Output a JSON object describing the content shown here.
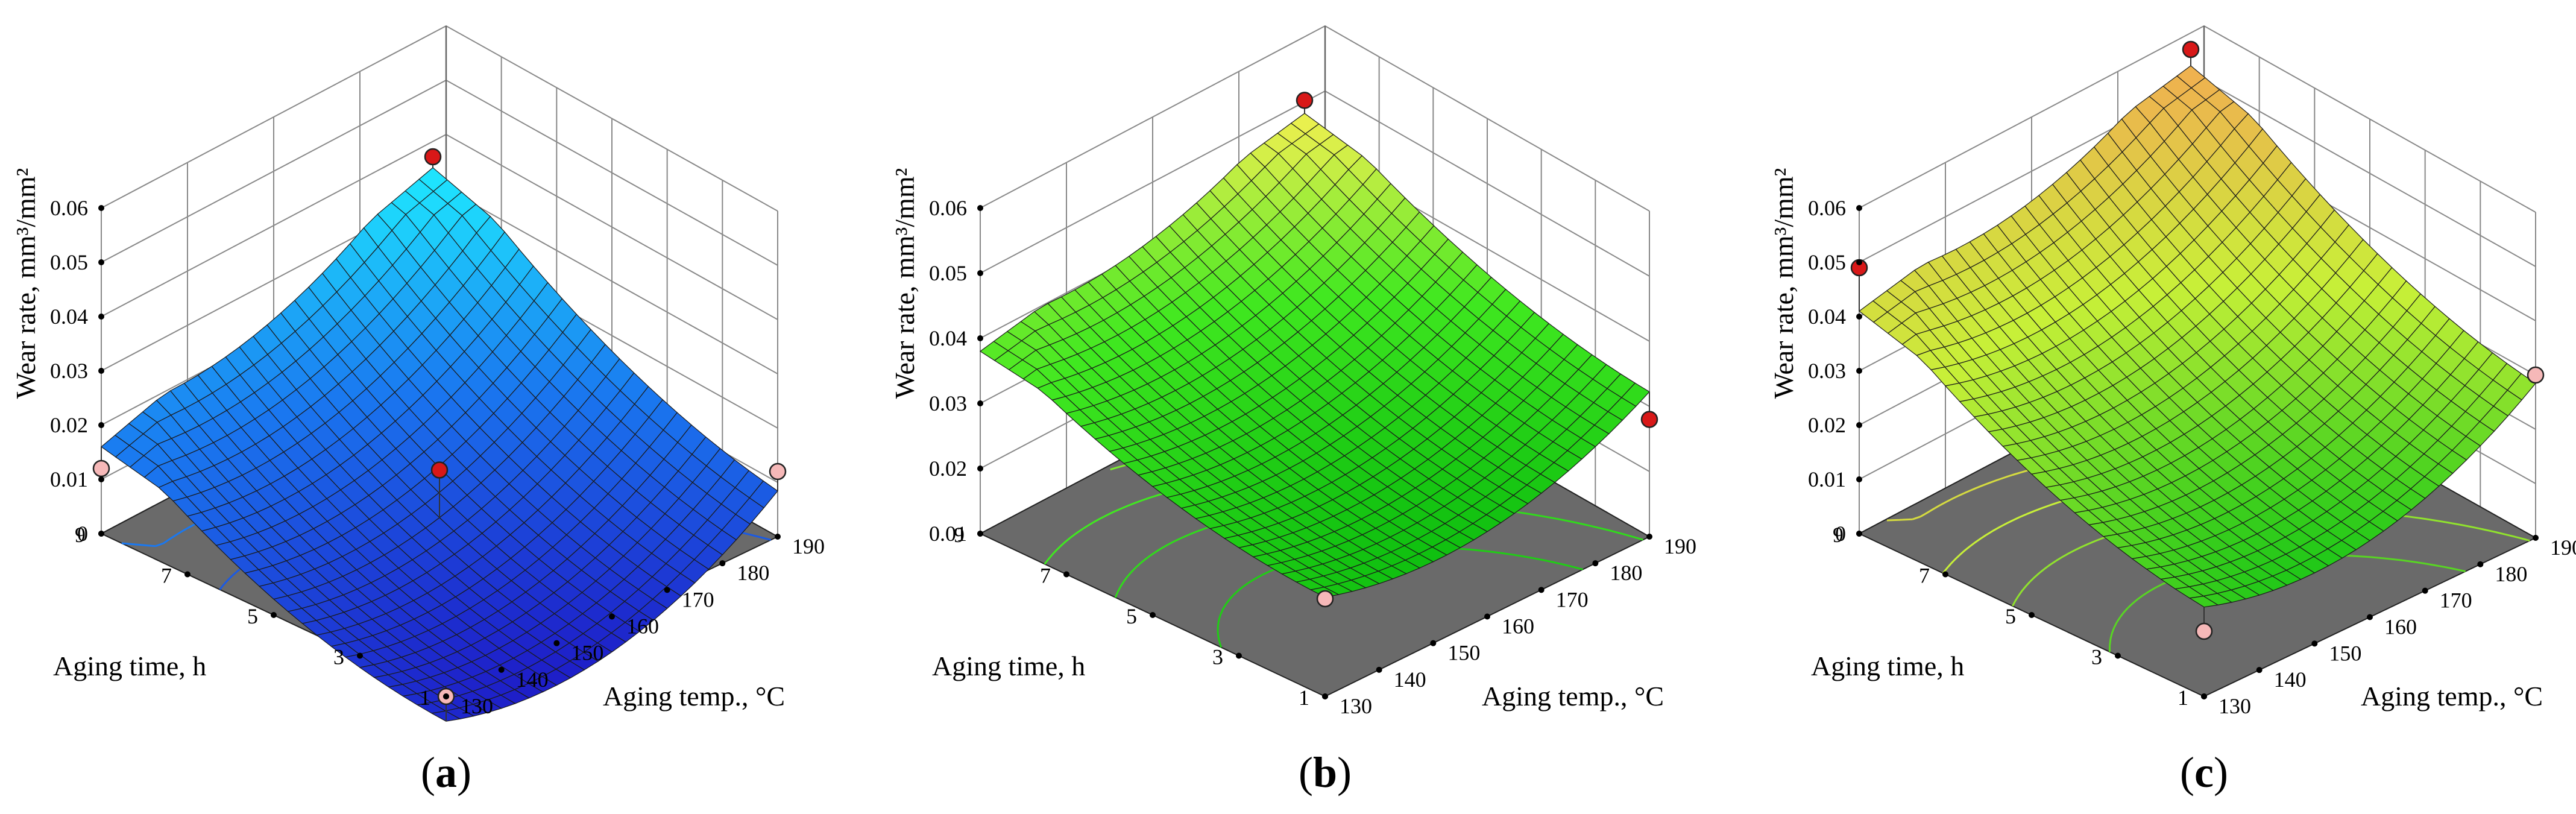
{
  "figure": {
    "panel_labels": [
      "(a)",
      "(b)",
      "(c)"
    ]
  },
  "chart_data": [
    {
      "type": "surface3d",
      "panel": "(a)",
      "zlabel": "Wear rate, mm³/mm²",
      "xlabel": "Aging temp., °C",
      "ylabel": "Aging time, h",
      "x_ticks": [
        "130",
        "140",
        "150",
        "160",
        "170",
        "180",
        "190"
      ],
      "y_ticks": [
        "1",
        "3",
        "5",
        "7",
        "9"
      ],
      "z_ticks": [
        "0",
        "0.01",
        "0.02",
        "0.03",
        "0.04",
        "0.05",
        "0.06"
      ],
      "x_range": [
        130,
        190
      ],
      "y_range": [
        1,
        9
      ],
      "zlim": [
        0,
        0.06
      ],
      "surface_corners": {
        "t130_h1": 0.001,
        "t190_h1": 0.014,
        "t130_h9": 0.016,
        "t190_h9": 0.038
      },
      "surface_min": {
        "temp": 160,
        "time": 3,
        "value": -0.003
      },
      "colormap": [
        "#1e1ec8",
        "#1a78f0",
        "#1ee8ff"
      ],
      "design_points": [
        {
          "temp": 130,
          "time": 1,
          "value": 0.0,
          "above": false
        },
        {
          "temp": 190,
          "time": 1,
          "value": 0.012,
          "above": false
        },
        {
          "temp": 130,
          "time": 9,
          "value": 0.012,
          "above": false
        },
        {
          "temp": 190,
          "time": 9,
          "value": 0.04,
          "above": true
        },
        {
          "temp": 160,
          "time": 5,
          "value": 0.012,
          "above": true
        }
      ]
    },
    {
      "type": "surface3d",
      "panel": "(b)",
      "zlabel": "Wear rate, mm³/mm²",
      "xlabel": "Aging temp., °C",
      "ylabel": "Aging time, h",
      "x_ticks": [
        "130",
        "140",
        "150",
        "160",
        "170",
        "180",
        "190"
      ],
      "y_ticks": [
        "1",
        "3",
        "5",
        "7",
        "9"
      ],
      "z_ticks": [
        "0.01",
        "0.02",
        "0.03",
        "0.04",
        "0.05",
        "0.06"
      ],
      "x_range": [
        130,
        190
      ],
      "y_range": [
        1,
        9
      ],
      "zlim": [
        0.01,
        0.06
      ],
      "surface_corners": {
        "t130_h1": 0.029,
        "t190_h1": 0.036,
        "t130_h9": 0.038,
        "t190_h9": 0.05
      },
      "surface_min": {
        "temp": 160,
        "time": 3,
        "value": 0.025
      },
      "colormap": [
        "#10c010",
        "#40e820",
        "#f0f050"
      ],
      "design_points": [
        {
          "temp": 190,
          "time": 1,
          "value": 0.028,
          "above": true
        },
        {
          "temp": 190,
          "time": 9,
          "value": 0.052,
          "above": true
        },
        {
          "temp": 130,
          "time": 1,
          "value": 0.025,
          "above": false
        }
      ]
    },
    {
      "type": "surface3d",
      "panel": "(c)",
      "zlabel": "Wear rate, mm³/mm²",
      "xlabel": "Aging temp., °C",
      "ylabel": "Aging time, h",
      "x_ticks": [
        "130",
        "140",
        "150",
        "160",
        "170",
        "180",
        "190"
      ],
      "y_ticks": [
        "1",
        "3",
        "5",
        "7",
        "9"
      ],
      "z_ticks": [
        "0",
        "0.01",
        "0.02",
        "0.03",
        "0.04",
        "0.05",
        "0.06"
      ],
      "x_range": [
        130,
        190
      ],
      "y_range": [
        1,
        9
      ],
      "zlim": [
        0,
        0.06
      ],
      "surface_corners": {
        "t130_h1": 0.022,
        "t190_h1": 0.034,
        "t130_h9": 0.041,
        "t190_h9": 0.057
      },
      "surface_min": {
        "temp": 160,
        "time": 3,
        "value": 0.018
      },
      "colormap": [
        "#20c818",
        "#c8f038",
        "#f0b050"
      ],
      "design_points": [
        {
          "temp": 130,
          "time": 1,
          "value": 0.012,
          "above": false
        },
        {
          "temp": 190,
          "time": 9,
          "value": 0.06,
          "above": true
        },
        {
          "temp": 130,
          "time": 9,
          "value": 0.049,
          "above": true
        },
        {
          "temp": 190,
          "time": 1,
          "value": 0.03,
          "above": false
        }
      ]
    }
  ]
}
